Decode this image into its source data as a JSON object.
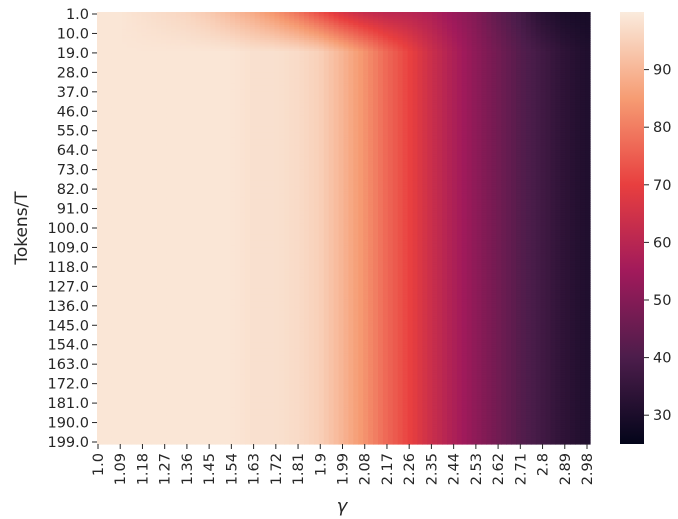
{
  "chart_data": {
    "type": "heatmap",
    "title": "",
    "xlabel": "γ",
    "ylabel": "Tokens/T",
    "x_tick_labels": [
      "1.0",
      "1.09",
      "1.18",
      "1.27",
      "1.36",
      "1.45",
      "1.54",
      "1.63",
      "1.72",
      "1.81",
      "1.9",
      "1.99",
      "2.08",
      "2.17",
      "2.26",
      "2.35",
      "2.44",
      "2.53",
      "2.62",
      "2.71",
      "2.8",
      "2.89",
      "2.98"
    ],
    "y_tick_labels": [
      "1.0",
      "10.0",
      "19.0",
      "28.0",
      "37.0",
      "46.0",
      "55.0",
      "64.0",
      "73.0",
      "82.0",
      "91.0",
      "100.0",
      "109.0",
      "118.0",
      "127.0",
      "136.0",
      "145.0",
      "154.0",
      "163.0",
      "172.0",
      "181.0",
      "190.0",
      "199.0"
    ],
    "x_range": [
      1.0,
      3.0
    ],
    "y_range": [
      1.0,
      200.0
    ],
    "colorbar": {
      "ticks": [
        30,
        40,
        50,
        60,
        70,
        80,
        90
      ],
      "vmin": 25,
      "vmax": 100,
      "colormap": "rocket",
      "colors": [
        "#03051a",
        "#4c1d4b",
        "#a11a5b",
        "#e83f3f",
        "#f69c73",
        "#faebdd"
      ]
    },
    "values_by_gamma": {
      "gamma": [
        1.0,
        1.09,
        1.18,
        1.27,
        1.36,
        1.45,
        1.54,
        1.63,
        1.72,
        1.81,
        1.9,
        1.99,
        2.08,
        2.17,
        2.26,
        2.35,
        2.44,
        2.53,
        2.62,
        2.71,
        2.8,
        2.89,
        2.98
      ],
      "row_tokens_1": [
        99,
        99,
        98,
        97,
        96,
        94,
        91,
        88,
        84,
        79,
        73,
        67,
        63,
        61,
        60,
        58,
        54,
        50,
        44,
        39,
        33,
        30,
        29
      ],
      "rows_tokens_19_to_199": [
        99,
        99,
        99,
        99,
        99,
        99,
        99,
        98,
        98,
        97,
        95,
        90,
        84,
        77,
        71,
        64,
        58,
        52,
        47,
        42,
        38,
        34,
        31
      ]
    }
  }
}
